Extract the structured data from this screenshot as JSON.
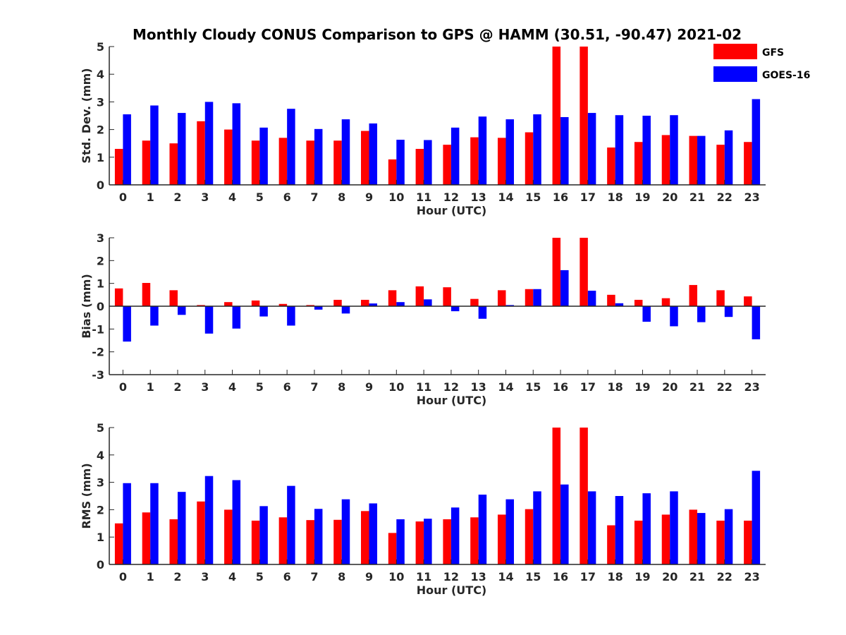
{
  "title": "Monthly Cloudy CONUS Comparison to GPS @ HAMM (30.51, -90.47) 2021-02",
  "legend": [
    {
      "name": "GFS",
      "color": "#ff0000"
    },
    {
      "name": "GOES-16",
      "color": "#0000ff"
    }
  ],
  "chart_data": [
    {
      "type": "bar",
      "ylabel": "Std. Dev. (mm)",
      "xlabel": "Hour (UTC)",
      "ylim": [
        0,
        5
      ],
      "yticks": [
        0,
        1,
        2,
        3,
        4,
        5
      ],
      "categories": [
        "0",
        "1",
        "2",
        "3",
        "4",
        "5",
        "6",
        "7",
        "8",
        "9",
        "10",
        "11",
        "12",
        "13",
        "14",
        "15",
        "16",
        "17",
        "18",
        "19",
        "20",
        "21",
        "22",
        "23"
      ],
      "series": [
        {
          "name": "GFS",
          "values": [
            1.3,
            1.6,
            1.5,
            2.3,
            2.0,
            1.6,
            1.7,
            1.6,
            1.6,
            1.95,
            0.92,
            1.3,
            1.45,
            1.72,
            1.7,
            1.9,
            5.0,
            5.0,
            1.35,
            1.55,
            1.8,
            1.77,
            1.45,
            1.55
          ]
        },
        {
          "name": "GOES-16",
          "values": [
            2.55,
            2.87,
            2.6,
            3.0,
            2.95,
            2.07,
            2.75,
            2.02,
            2.37,
            2.22,
            1.63,
            1.62,
            2.07,
            2.47,
            2.37,
            2.55,
            2.45,
            2.6,
            2.52,
            2.5,
            2.52,
            1.77,
            1.97,
            3.1
          ]
        }
      ]
    },
    {
      "type": "bar",
      "ylabel": "Bias (mm)",
      "xlabel": "Hour (UTC)",
      "ylim": [
        -3,
        3
      ],
      "yticks": [
        -3,
        -2,
        -1,
        0,
        1,
        2,
        3
      ],
      "categories": [
        "0",
        "1",
        "2",
        "3",
        "4",
        "5",
        "6",
        "7",
        "8",
        "9",
        "10",
        "11",
        "12",
        "13",
        "14",
        "15",
        "16",
        "17",
        "18",
        "19",
        "20",
        "21",
        "22",
        "23"
      ],
      "series": [
        {
          "name": "GFS",
          "values": [
            0.78,
            1.02,
            0.7,
            0.05,
            0.18,
            0.25,
            0.1,
            0.05,
            0.28,
            0.28,
            0.7,
            0.87,
            0.83,
            0.32,
            0.7,
            0.75,
            3.0,
            3.0,
            0.5,
            0.28,
            0.35,
            0.93,
            0.7,
            0.43
          ]
        },
        {
          "name": "GOES-16",
          "values": [
            -1.55,
            -0.85,
            -0.38,
            -1.2,
            -0.98,
            -0.45,
            -0.85,
            -0.15,
            -0.32,
            0.12,
            0.18,
            0.3,
            -0.22,
            -0.55,
            0.05,
            0.75,
            1.58,
            0.68,
            0.13,
            -0.68,
            -0.88,
            -0.7,
            -0.47,
            -1.45
          ]
        }
      ]
    },
    {
      "type": "bar",
      "ylabel": "RMS (mm)",
      "xlabel": "Hour (UTC)",
      "ylim": [
        0,
        5
      ],
      "yticks": [
        0,
        1,
        2,
        3,
        4,
        5
      ],
      "categories": [
        "0",
        "1",
        "2",
        "3",
        "4",
        "5",
        "6",
        "7",
        "8",
        "9",
        "10",
        "11",
        "12",
        "13",
        "14",
        "15",
        "16",
        "17",
        "18",
        "19",
        "20",
        "21",
        "22",
        "23"
      ],
      "series": [
        {
          "name": "GFS",
          "values": [
            1.5,
            1.9,
            1.65,
            2.3,
            2.0,
            1.6,
            1.72,
            1.62,
            1.63,
            1.95,
            1.15,
            1.57,
            1.65,
            1.72,
            1.82,
            2.02,
            5.0,
            5.0,
            1.43,
            1.6,
            1.82,
            2.0,
            1.6,
            1.6
          ]
        },
        {
          "name": "GOES-16",
          "values": [
            2.97,
            2.97,
            2.65,
            3.23,
            3.08,
            2.13,
            2.87,
            2.03,
            2.38,
            2.23,
            1.65,
            1.67,
            2.08,
            2.55,
            2.38,
            2.67,
            2.92,
            2.67,
            2.5,
            2.6,
            2.67,
            1.88,
            2.02,
            3.42
          ]
        }
      ]
    }
  ]
}
